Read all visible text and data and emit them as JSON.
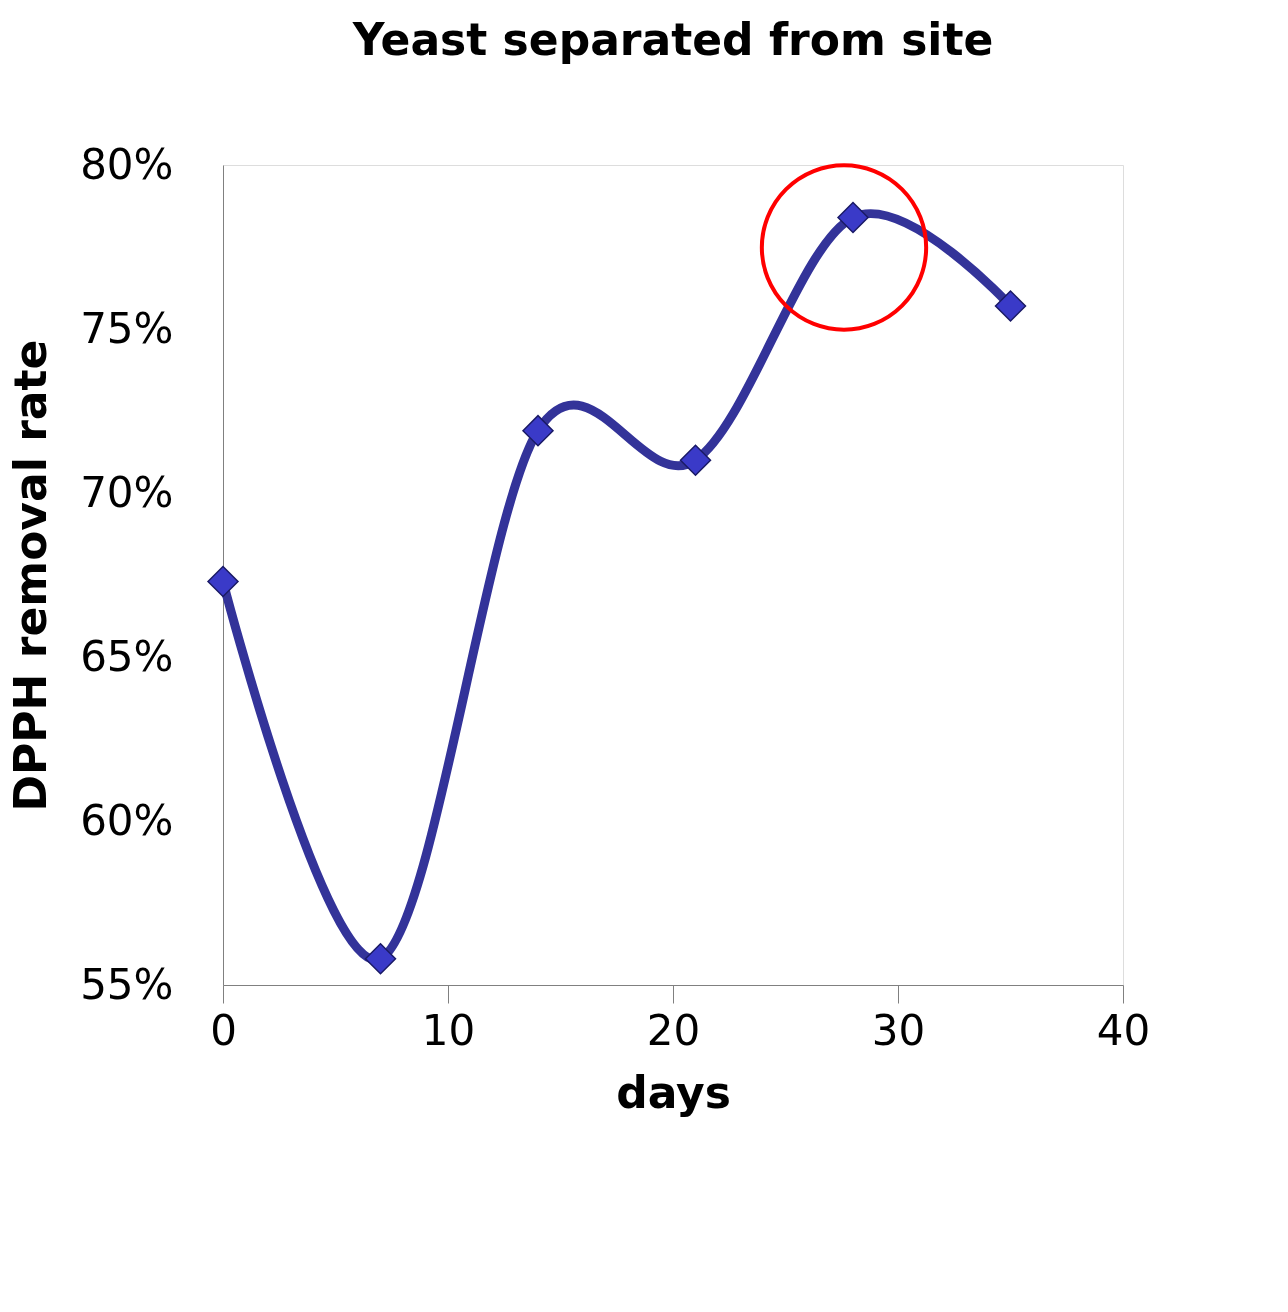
{
  "chart_data": {
    "type": "line",
    "title": "Yeast separated from site",
    "xlabel": "days",
    "ylabel": "DPPH removal rate",
    "x": [
      0,
      7,
      14,
      21,
      28,
      35
    ],
    "series": [
      {
        "color": "#333399",
        "values": [
          67.3,
          55.8,
          71.9,
          71.0,
          78.4,
          75.7
        ]
      }
    ],
    "xlim": [
      0,
      40
    ],
    "xticks": [
      0,
      10,
      20,
      30,
      40
    ],
    "ylim": [
      55,
      80
    ],
    "yticks": [
      {
        "value": 55,
        "label": "55%"
      },
      {
        "value": 60,
        "label": "60%"
      },
      {
        "value": 65,
        "label": "65%"
      },
      {
        "value": 70,
        "label": "70%"
      },
      {
        "value": 75,
        "label": "75%"
      },
      {
        "value": 80,
        "label": "80%"
      }
    ],
    "grid": false,
    "marker": "diamond",
    "line_style": "solid"
  }
}
